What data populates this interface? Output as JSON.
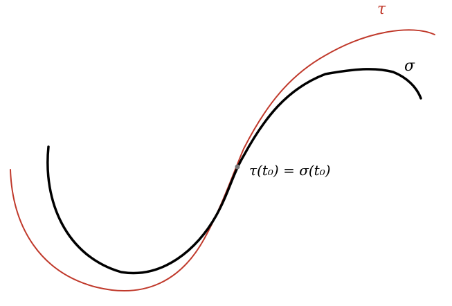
{
  "diagram": {
    "curves": [
      {
        "name": "τ",
        "color": "#c0392b"
      },
      {
        "name": "σ",
        "color": "#000000"
      }
    ],
    "intersection_label": "τ(t₀) = σ(t₀)",
    "point_color": "#777777"
  }
}
